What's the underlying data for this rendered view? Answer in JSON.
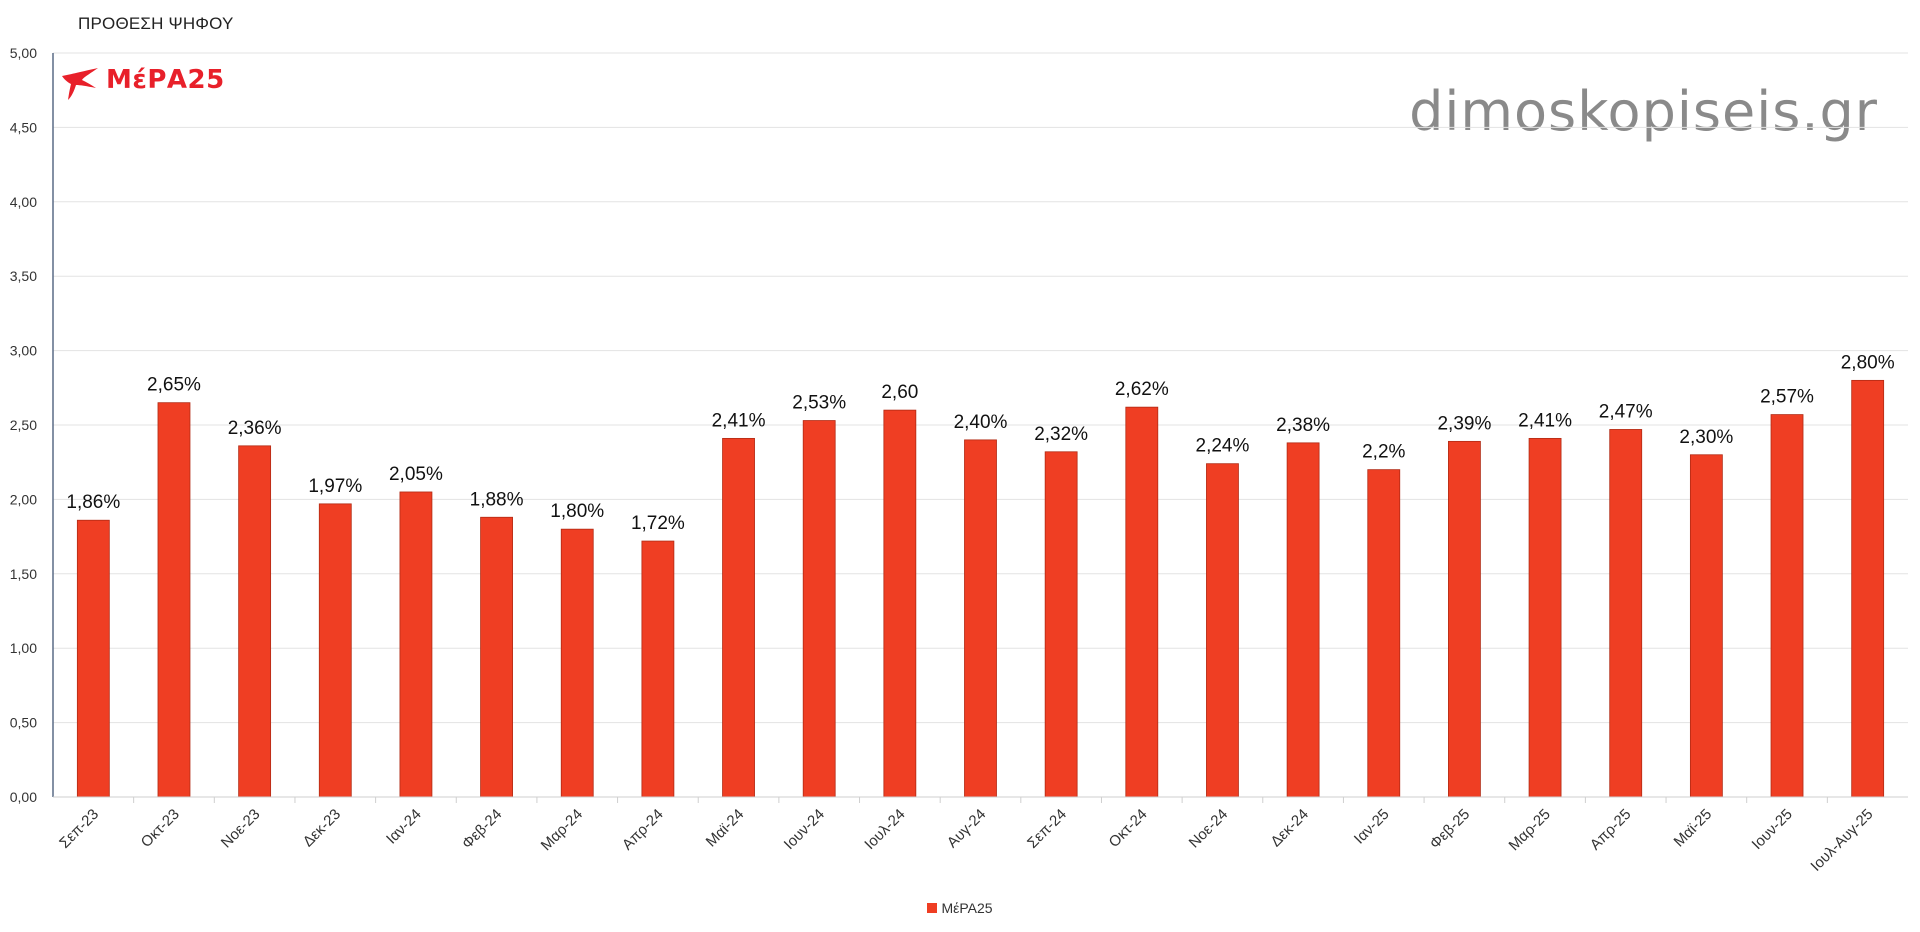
{
  "chart_data": {
    "type": "bar",
    "title": "ΠΡΟΘΕΣΗ ΨΗΦΟΥ",
    "categories": [
      "Σεπ-23",
      "Οκτ-23",
      "Νοε-23",
      "Δεκ-23",
      "Ιαν-24",
      "Φεβ-24",
      "Μαρ-24",
      "Απρ-24",
      "Μαϊ-24",
      "Ιουν-24",
      "Ιουλ-24",
      "Αυγ-24",
      "Σεπ-24",
      "Οκτ-24",
      "Νοε-24",
      "Δεκ-24",
      "Ιαν-25",
      "Φεβ-25",
      "Μαρ-25",
      "Απρ-25",
      "Μαϊ-25",
      "Ιουν-25",
      "Ιουλ-Αυγ-25"
    ],
    "series": [
      {
        "name": "ΜέΡΑ25",
        "values": [
          1.86,
          2.65,
          2.36,
          1.97,
          2.05,
          1.88,
          1.8,
          1.72,
          2.41,
          2.53,
          2.6,
          2.4,
          2.32,
          2.62,
          2.24,
          2.38,
          2.2,
          2.39,
          2.41,
          2.47,
          2.3,
          2.57,
          2.8
        ],
        "labels": [
          "1,86%",
          "2,65%",
          "2,36%",
          "1,97%",
          "2,05%",
          "1,88%",
          "1,80%",
          "1,72%",
          "2,41%",
          "2,53%",
          "2,60",
          "2,40%",
          "2,32%",
          "2,62%",
          "2,24%",
          "2,38%",
          "2,2%",
          "2,39%",
          "2,41%",
          "2,47%",
          "2,30%",
          "2,57%",
          "2,80%"
        ]
      }
    ],
    "ylim": [
      0,
      5
    ],
    "yticks": [
      "0,00",
      "0,50",
      "1,00",
      "1,50",
      "2,00",
      "2,50",
      "3,00",
      "3,50",
      "4,00",
      "4,50",
      "5,00"
    ],
    "grid": true,
    "legend_position": "bottom-center",
    "xlabel": "",
    "ylabel": ""
  },
  "colors": {
    "bar": "#ef3e23",
    "bar_border": "#b22a14",
    "grid": "#e3e3e3",
    "axis": "#5a6b86"
  },
  "logo": {
    "text": "ΜέΡΑ25",
    "icon": "swallow-bird-icon"
  },
  "watermark": "dimoskopiseis.gr"
}
